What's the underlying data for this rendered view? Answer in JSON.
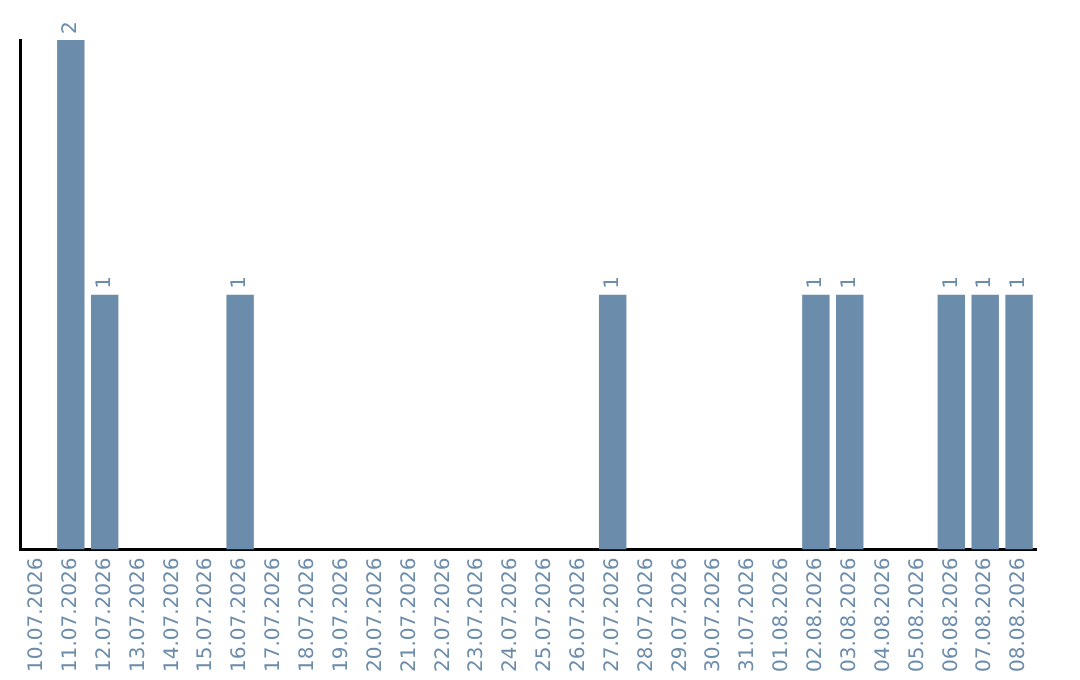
{
  "chart_data": {
    "type": "bar",
    "categories": [
      "10.07.2026",
      "11.07.2026",
      "12.07.2026",
      "13.07.2026",
      "14.07.2026",
      "15.07.2026",
      "16.07.2026",
      "17.07.2026",
      "18.07.2026",
      "19.07.2026",
      "20.07.2026",
      "21.07.2026",
      "22.07.2026",
      "23.07.2026",
      "24.07.2026",
      "25.07.2026",
      "26.07.2026",
      "27.07.2026",
      "28.07.2026",
      "29.07.2026",
      "30.07.2026",
      "31.07.2026",
      "01.08.2026",
      "02.08.2026",
      "03.08.2026",
      "04.08.2026",
      "05.08.2026",
      "06.08.2026",
      "07.08.2026",
      "08.08.2026"
    ],
    "values": [
      0,
      2,
      1,
      0,
      0,
      0,
      1,
      0,
      0,
      0,
      0,
      0,
      0,
      0,
      0,
      0,
      0,
      1,
      0,
      0,
      0,
      0,
      0,
      1,
      1,
      0,
      0,
      1,
      1,
      1
    ],
    "value_labels": [
      null,
      "2",
      "1",
      null,
      null,
      null,
      "1",
      null,
      null,
      null,
      null,
      null,
      null,
      null,
      null,
      null,
      null,
      "1",
      null,
      null,
      null,
      null,
      null,
      "1",
      "1",
      null,
      null,
      "1",
      "1",
      "1"
    ],
    "color": "#6b8cab",
    "grid": false,
    "legend": false,
    "tick_labels": "x"
  }
}
